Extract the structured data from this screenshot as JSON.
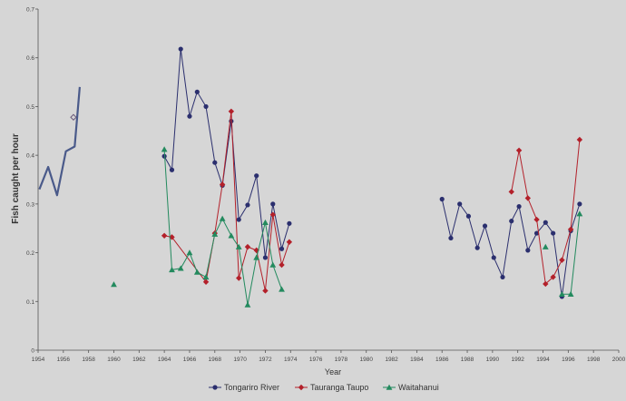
{
  "chart_data": {
    "type": "line",
    "title": "",
    "xlabel": "Year",
    "ylabel": "Fish caught per hour",
    "xlim": [
      1954,
      2000
    ],
    "ylim": [
      0,
      0.7
    ],
    "grid": false,
    "legend_position": "bottom",
    "x_ticks": [
      "1954",
      "1956",
      "1958",
      "1960",
      "1962",
      "1964",
      "1966",
      "1968",
      "1970",
      "1972",
      "1974",
      "1976",
      "1978",
      "1980",
      "1982",
      "1984",
      "1986",
      "1988",
      "1990",
      "1992",
      "1994",
      "1996",
      "1998",
      "2000"
    ],
    "y_ticks": [
      "0",
      "0.1",
      "0.2",
      "0.3",
      "0.4",
      "0.5",
      "0.6",
      "0.7"
    ],
    "series": [
      {
        "name": "Tongariro River",
        "color": "#2b2f6e",
        "marker": "circle",
        "segments": [
          [
            [
              1964.0,
              0.398
            ],
            [
              1964.6,
              0.37
            ],
            [
              1965.3,
              0.618
            ],
            [
              1966.0,
              0.48
            ],
            [
              1966.6,
              0.53
            ],
            [
              1967.3,
              0.5
            ],
            [
              1968.0,
              0.385
            ],
            [
              1968.6,
              0.338
            ],
            [
              1969.3,
              0.47
            ],
            [
              1969.9,
              0.268
            ],
            [
              1970.6,
              0.298
            ],
            [
              1971.3,
              0.358
            ],
            [
              1972.0,
              0.19
            ],
            [
              1972.6,
              0.3
            ],
            [
              1973.3,
              0.208
            ],
            [
              1973.9,
              0.26
            ]
          ],
          [
            [
              1986.0,
              0.31
            ],
            [
              1986.7,
              0.23
            ],
            [
              1987.4,
              0.3
            ],
            [
              1988.1,
              0.275
            ],
            [
              1988.8,
              0.21
            ],
            [
              1989.4,
              0.255
            ],
            [
              1990.1,
              0.19
            ],
            [
              1990.8,
              0.15
            ],
            [
              1991.5,
              0.265
            ],
            [
              1992.1,
              0.295
            ],
            [
              1992.8,
              0.205
            ],
            [
              1993.5,
              0.24
            ],
            [
              1994.2,
              0.262
            ],
            [
              1994.8,
              0.24
            ],
            [
              1995.5,
              0.11
            ],
            [
              1996.2,
              0.245
            ],
            [
              1996.9,
              0.3
            ]
          ]
        ]
      },
      {
        "name": "Tauranga Taupo",
        "color": "#b3202a",
        "marker": "diamond",
        "segments": [
          [
            [
              1964.0,
              0.235
            ],
            [
              1964.6,
              0.232
            ],
            [
              1967.3,
              0.14
            ],
            [
              1968.0,
              0.24
            ],
            [
              1968.6,
              0.34
            ],
            [
              1969.3,
              0.49
            ],
            [
              1969.9,
              0.148
            ],
            [
              1970.6,
              0.212
            ],
            [
              1971.3,
              0.205
            ],
            [
              1972.0,
              0.122
            ],
            [
              1972.6,
              0.278
            ],
            [
              1973.3,
              0.175
            ],
            [
              1973.9,
              0.222
            ]
          ],
          [
            [
              1991.5,
              0.325
            ],
            [
              1992.1,
              0.41
            ],
            [
              1992.8,
              0.312
            ],
            [
              1993.5,
              0.268
            ],
            [
              1994.2,
              0.136
            ],
            [
              1994.8,
              0.15
            ],
            [
              1995.5,
              0.185
            ],
            [
              1996.2,
              0.248
            ],
            [
              1996.9,
              0.432
            ]
          ]
        ]
      },
      {
        "name": "Waitahanui",
        "color": "#238a5e",
        "marker": "triangle",
        "segments": [
          [
            [
              1964.0,
              0.412
            ],
            [
              1964.6,
              0.165
            ],
            [
              1965.3,
              0.168
            ],
            [
              1966.0,
              0.2
            ],
            [
              1966.6,
              0.16
            ],
            [
              1967.3,
              0.15
            ],
            [
              1968.0,
              0.238
            ],
            [
              1968.6,
              0.27
            ],
            [
              1969.3,
              0.235
            ],
            [
              1969.9,
              0.212
            ],
            [
              1970.6,
              0.093
            ],
            [
              1971.3,
              0.19
            ],
            [
              1972.0,
              0.262
            ],
            [
              1972.6,
              0.175
            ],
            [
              1973.3,
              0.125
            ]
          ],
          [
            [
              1995.5,
              0.115
            ],
            [
              1996.2,
              0.115
            ],
            [
              1996.9,
              0.28
            ]
          ]
        ],
        "isolated_points": [
          [
            1960.0,
            0.135
          ],
          [
            1994.2,
            0.212
          ]
        ]
      }
    ],
    "early_trace": [
      [
        1954.1,
        0.33
      ],
      [
        1954.8,
        0.376
      ],
      [
        1955.5,
        0.318
      ],
      [
        1956.2,
        0.408
      ],
      [
        1956.9,
        0.418
      ],
      [
        1957.3,
        0.54
      ]
    ],
    "early_marker": [
      1956.8,
      0.478
    ]
  }
}
